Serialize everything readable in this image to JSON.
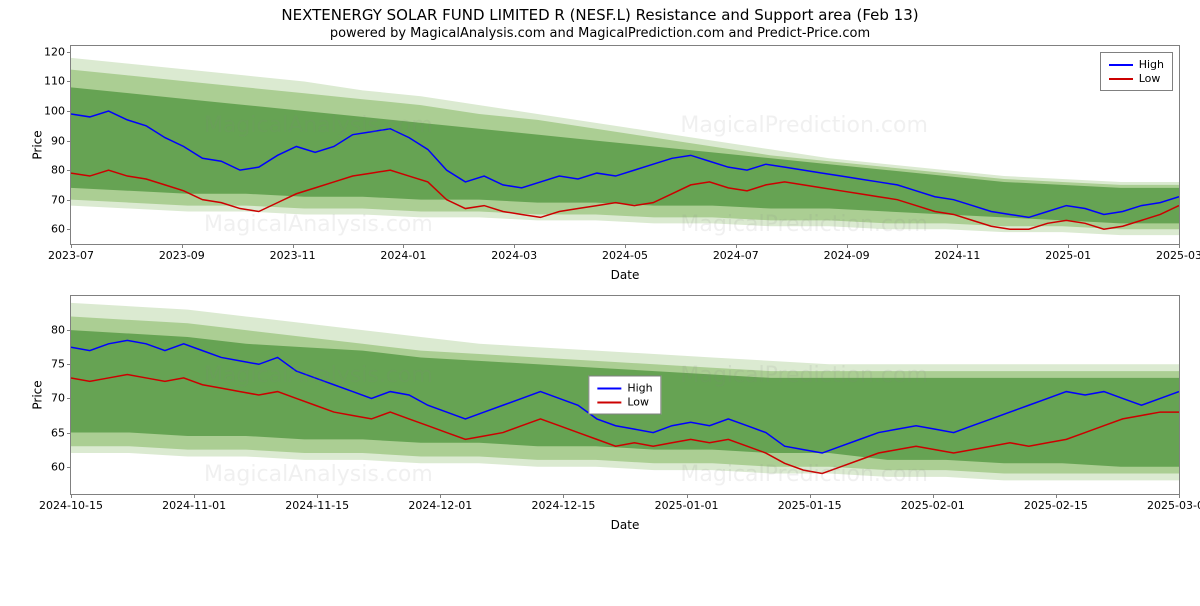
{
  "title": "NEXTENERGY SOLAR FUND LIMITED R (NESF.L) Resistance and Support area (Feb 13)",
  "subtitle": "powered by MagicalAnalysis.com and MagicalPrediction.com and Predict-Price.com",
  "watermarks": [
    "MagicalAnalysis.com",
    "MagicalPrediction.com"
  ],
  "legend": {
    "high_label": "High",
    "low_label": "Low"
  },
  "colors": {
    "high": "#0000ff",
    "low": "#cc0000",
    "band_outer": "rgba(112,173,71,0.25)",
    "band_mid": "rgba(112,173,71,0.45)",
    "band_inner": "rgba(56,135,40,0.60)",
    "axis": "#808080",
    "background": "#ffffff"
  },
  "chart1": {
    "type": "line_with_band",
    "ylabel": "Price",
    "xlabel": "Date",
    "ylim": [
      55,
      122
    ],
    "yticks": [
      60,
      70,
      80,
      90,
      100,
      110,
      120
    ],
    "xticks": [
      "2023-07",
      "2023-09",
      "2023-11",
      "2024-01",
      "2024-03",
      "2024-05",
      "2024-07",
      "2024-09",
      "2024-11",
      "2025-01",
      "2025-03"
    ],
    "legend_pos": "top-right",
    "band": {
      "outer_top": [
        118,
        116,
        114,
        112,
        110,
        107,
        105,
        102,
        99,
        96,
        93,
        90,
        87,
        84,
        82,
        80,
        78,
        77,
        76,
        76
      ],
      "outer_bot": [
        68,
        67,
        66,
        66,
        65,
        65,
        64,
        64,
        63,
        63,
        62,
        62,
        61,
        61,
        60,
        60,
        59,
        59,
        58,
        58
      ],
      "mid_top": [
        114,
        112,
        110,
        108,
        106,
        104,
        102,
        99,
        97,
        94,
        91,
        88,
        85,
        83,
        81,
        79,
        77,
        76,
        75,
        75
      ],
      "mid_bot": [
        70,
        69,
        68,
        68,
        67,
        67,
        66,
        66,
        65,
        65,
        64,
        64,
        63,
        63,
        62,
        62,
        61,
        61,
        60,
        60
      ],
      "inner_top": [
        108,
        106,
        104,
        102,
        100,
        98,
        96,
        94,
        92,
        90,
        88,
        86,
        84,
        82,
        80,
        78,
        76,
        75,
        74,
        74
      ],
      "inner_bot": [
        74,
        73,
        72,
        72,
        71,
        71,
        70,
        70,
        69,
        69,
        68,
        68,
        67,
        67,
        66,
        65,
        64,
        63,
        62,
        62
      ]
    },
    "high": [
      99,
      98,
      100,
      97,
      95,
      91,
      88,
      84,
      83,
      80,
      81,
      85,
      88,
      86,
      88,
      92,
      93,
      94,
      91,
      87,
      80,
      76,
      78,
      75,
      74,
      76,
      78,
      77,
      79,
      78,
      80,
      82,
      84,
      85,
      83,
      81,
      80,
      82,
      81,
      80,
      79,
      78,
      77,
      76,
      75,
      73,
      71,
      70,
      68,
      66,
      65,
      64,
      66,
      68,
      67,
      65,
      66,
      68,
      69,
      71
    ],
    "low": [
      79,
      78,
      80,
      78,
      77,
      75,
      73,
      70,
      69,
      67,
      66,
      69,
      72,
      74,
      76,
      78,
      79,
      80,
      78,
      76,
      70,
      67,
      68,
      66,
      65,
      64,
      66,
      67,
      68,
      69,
      68,
      69,
      72,
      75,
      76,
      74,
      73,
      75,
      76,
      75,
      74,
      73,
      72,
      71,
      70,
      68,
      66,
      65,
      63,
      61,
      60,
      60,
      62,
      63,
      62,
      60,
      61,
      63,
      65,
      68
    ]
  },
  "chart2": {
    "type": "line_with_band",
    "ylabel": "Price",
    "xlabel": "Date",
    "ylim": [
      56,
      85
    ],
    "yticks": [
      60,
      65,
      70,
      75,
      80
    ],
    "xticks": [
      "2024-10-15",
      "2024-11-01",
      "2024-11-15",
      "2024-12-01",
      "2024-12-15",
      "2025-01-01",
      "2025-01-15",
      "2025-02-01",
      "2025-02-15",
      "2025-03-01"
    ],
    "legend_pos": "center",
    "band": {
      "outer_top": [
        84,
        83.5,
        83,
        82,
        81,
        80,
        79,
        78,
        77.5,
        77,
        76.5,
        76,
        75.5,
        75,
        75,
        75,
        75,
        75,
        75,
        75
      ],
      "outer_bot": [
        62,
        62,
        61.5,
        61.5,
        61,
        61,
        60.5,
        60.5,
        60,
        60,
        59.5,
        59.5,
        59,
        59,
        58.5,
        58.5,
        58,
        58,
        58,
        58
      ],
      "mid_top": [
        82,
        81.5,
        81,
        80,
        79,
        78,
        77,
        76.5,
        76,
        75.5,
        75,
        74.5,
        74,
        74,
        74,
        74,
        74,
        74,
        74,
        74
      ],
      "mid_bot": [
        63,
        63,
        62.5,
        62.5,
        62,
        62,
        61.5,
        61.5,
        61,
        61,
        60.5,
        60.5,
        60,
        60,
        59.5,
        59.5,
        59,
        59,
        59,
        59
      ],
      "inner_top": [
        80,
        79.5,
        79,
        78,
        77.5,
        77,
        76,
        75.5,
        75,
        74.5,
        74,
        73.5,
        73,
        73,
        73,
        73,
        73,
        73,
        73,
        73
      ],
      "inner_bot": [
        65,
        65,
        64.5,
        64.5,
        64,
        64,
        63.5,
        63.5,
        63,
        63,
        62.5,
        62.5,
        62,
        62,
        61,
        61,
        60.5,
        60.5,
        60,
        60
      ]
    },
    "high": [
      77.5,
      77,
      78,
      78.5,
      78,
      77,
      78,
      77,
      76,
      75.5,
      75,
      76,
      74,
      73,
      72,
      71,
      70,
      71,
      70.5,
      69,
      68,
      67,
      68,
      69,
      70,
      71,
      70,
      69,
      67,
      66,
      65.5,
      65,
      66,
      66.5,
      66,
      67,
      66,
      65,
      63,
      62.5,
      62,
      63,
      64,
      65,
      65.5,
      66,
      65.5,
      65,
      66,
      67,
      68,
      69,
      70,
      71,
      70.5,
      71,
      70,
      69,
      70,
      71
    ],
    "low": [
      73,
      72.5,
      73,
      73.5,
      73,
      72.5,
      73,
      72,
      71.5,
      71,
      70.5,
      71,
      70,
      69,
      68,
      67.5,
      67,
      68,
      67,
      66,
      65,
      64,
      64.5,
      65,
      66,
      67,
      66,
      65,
      64,
      63,
      63.5,
      63,
      63.5,
      64,
      63.5,
      64,
      63,
      62,
      60.5,
      59.5,
      59,
      60,
      61,
      62,
      62.5,
      63,
      62.5,
      62,
      62.5,
      63,
      63.5,
      63,
      63.5,
      64,
      65,
      66,
      67,
      67.5,
      68,
      68
    ]
  }
}
